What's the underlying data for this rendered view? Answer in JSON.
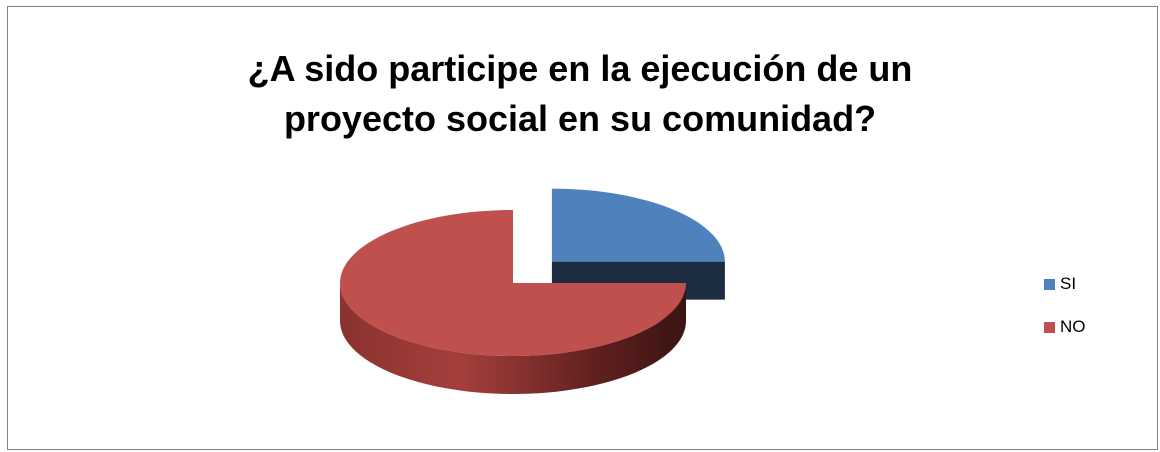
{
  "chart_data": {
    "type": "pie",
    "style": "3d-exploded",
    "title_lines": [
      "¿A sido participe en la ejecución de un",
      "proyecto social en su comunidad?"
    ],
    "categories": [
      "SI",
      "NO"
    ],
    "values": [
      25,
      75
    ],
    "colors": [
      "#4F81BD",
      "#C0504D"
    ],
    "legend_position": "right"
  }
}
